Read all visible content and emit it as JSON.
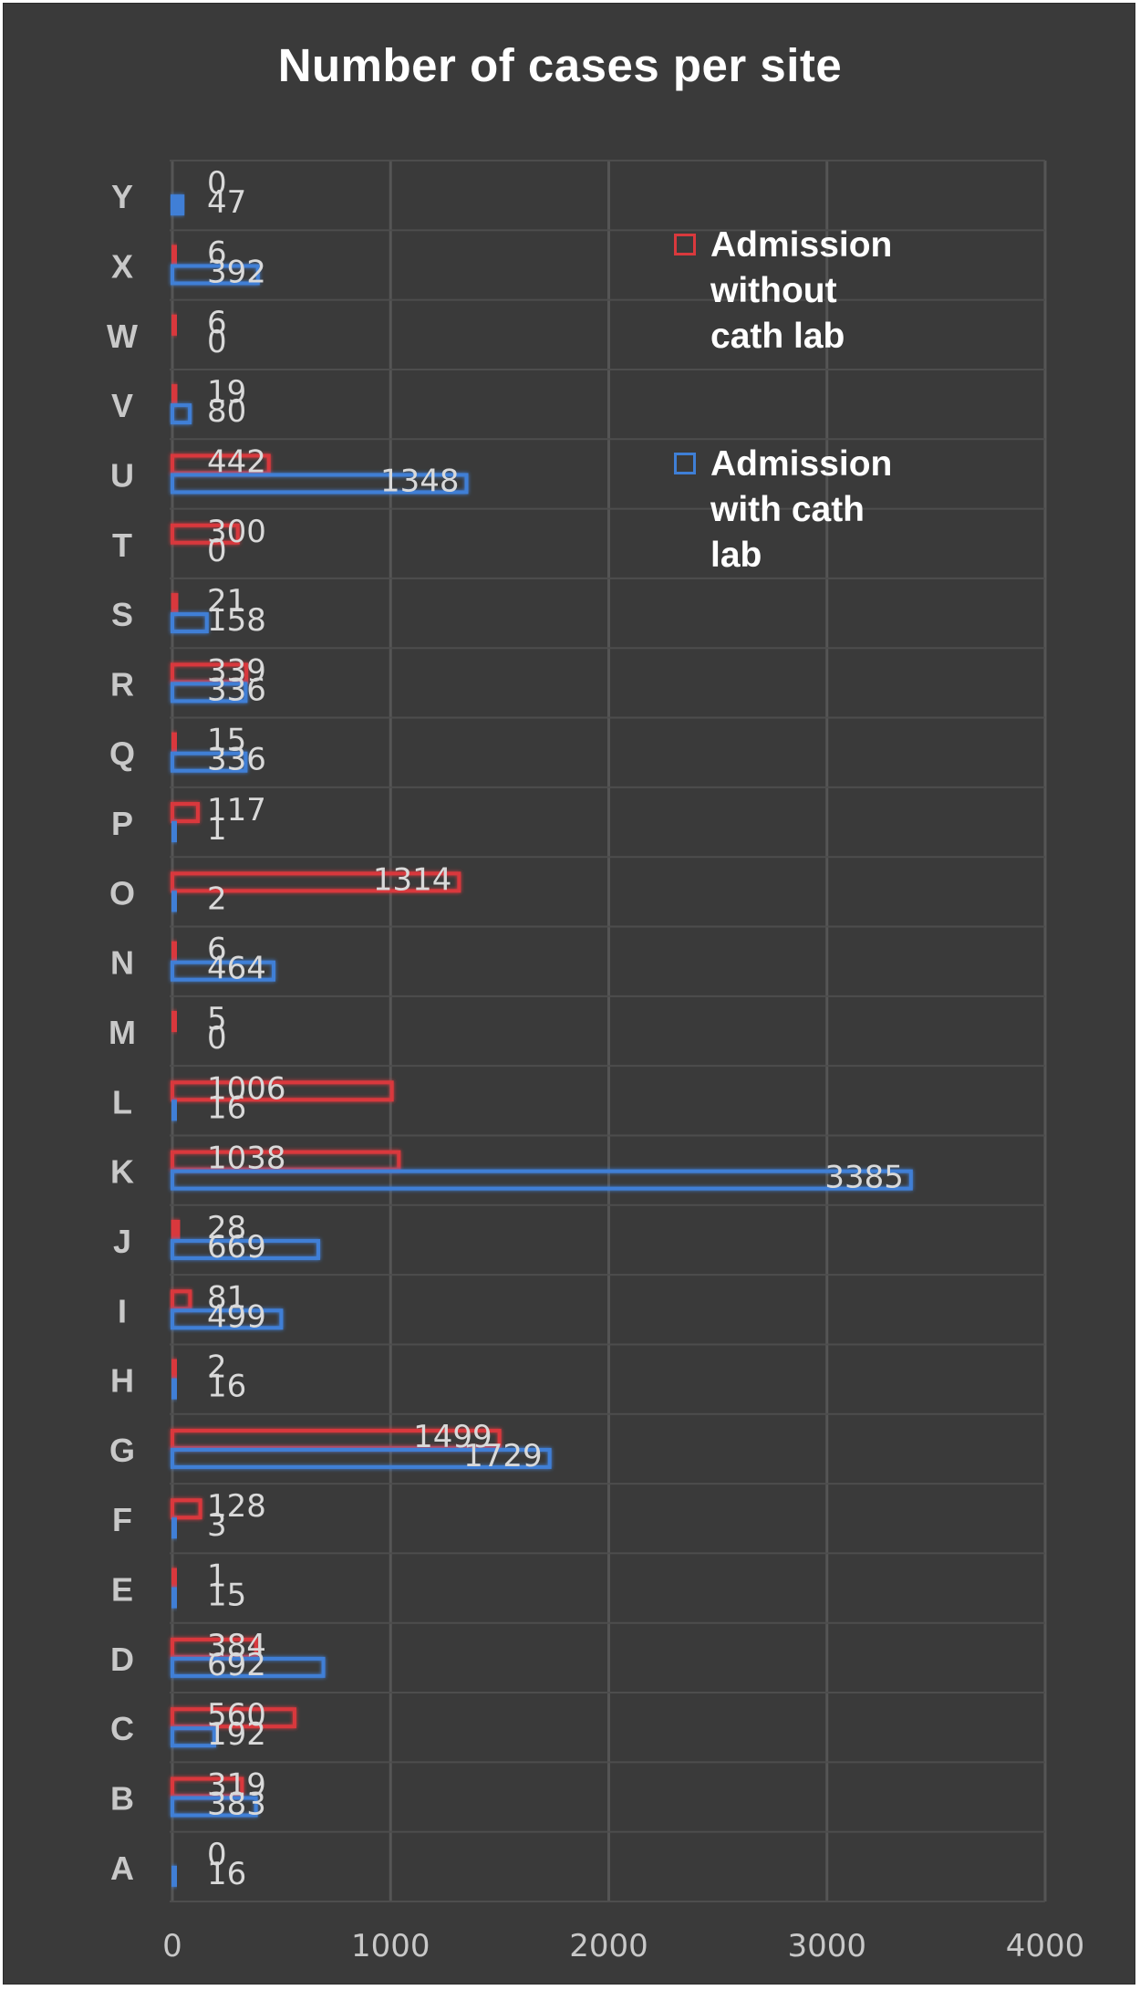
{
  "chart_data": {
    "type": "bar",
    "orientation": "horizontal",
    "title": "Number of cases per site",
    "categories": [
      "A",
      "B",
      "C",
      "D",
      "E",
      "F",
      "G",
      "H",
      "I",
      "J",
      "K",
      "L",
      "M",
      "N",
      "O",
      "P",
      "Q",
      "R",
      "S",
      "T",
      "U",
      "V",
      "W",
      "X",
      "Y"
    ],
    "series": [
      {
        "name": "Admission without cath lab",
        "color": "#d9393d",
        "values": [
          0,
          319,
          560,
          384,
          1,
          128,
          1499,
          2,
          81,
          28,
          1038,
          1006,
          5,
          6,
          1314,
          117,
          15,
          339,
          21,
          300,
          442,
          19,
          6,
          6,
          0
        ]
      },
      {
        "name": "Admission with cath lab",
        "color": "#3f7fd6",
        "values": [
          16,
          383,
          192,
          692,
          15,
          3,
          1729,
          16,
          499,
          669,
          3385,
          16,
          0,
          464,
          2,
          1,
          336,
          336,
          158,
          0,
          1348,
          80,
          0,
          392,
          47
        ]
      }
    ],
    "xlim": [
      0,
      4000
    ],
    "xticks": [
      "0",
      "1000",
      "2000",
      "3000",
      "4000"
    ],
    "grid": true,
    "legend_position": "top-right"
  },
  "legend": {
    "items": [
      {
        "lines": [
          "Admission",
          "without",
          "cath lab"
        ]
      },
      {
        "lines": [
          "Admission",
          "with cath",
          "lab"
        ]
      }
    ]
  }
}
